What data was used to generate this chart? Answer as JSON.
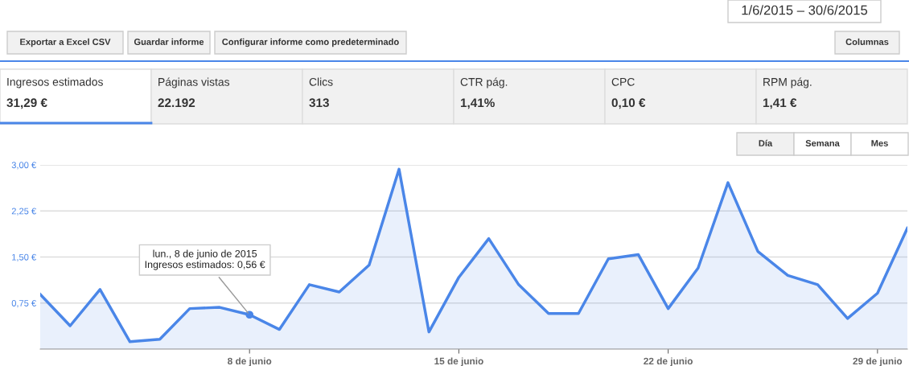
{
  "chart_data": [
    {
      "type": "other",
      "annotations": [
        "1/6/2015 – 30/6/2015",
        "Exportar a Excel CSV",
        "Guardar informe",
        "Configurar informe como predeterminado",
        "Columnas",
        "Ingresos estimados",
        "31,29 €",
        "Páginas vistas",
        "22.192",
        "Clics",
        "313",
        "CTR pág.",
        "1,41%",
        "CPC",
        "0,10 €",
        "RPM pág.",
        "1,41 €",
        "Día",
        "Semana",
        "Mes"
      ]
    },
    {
      "type": "area",
      "x": [
        "2015-06-01",
        "2015-06-02",
        "2015-06-03",
        "2015-06-04",
        "2015-06-05",
        "2015-06-06",
        "2015-06-07",
        "2015-06-08",
        "2015-06-09",
        "2015-06-10",
        "2015-06-11",
        "2015-06-12",
        "2015-06-13",
        "2015-06-14",
        "2015-06-15",
        "2015-06-16",
        "2015-06-17",
        "2015-06-18",
        "2015-06-19",
        "2015-06-20",
        "2015-06-21",
        "2015-06-22",
        "2015-06-23",
        "2015-06-24",
        "2015-06-25",
        "2015-06-26",
        "2015-06-27",
        "2015-06-28",
        "2015-06-29",
        "2015-06-30"
      ],
      "series": [
        {
          "color": "#4a86e8",
          "values": [
            0.89,
            0.38,
            0.97,
            0.12,
            0.16,
            0.66,
            0.68,
            0.56,
            0.32,
            1.05,
            0.93,
            1.37,
            2.93,
            0.28,
            1.17,
            1.8,
            1.05,
            0.58,
            0.58,
            1.47,
            1.54,
            0.66,
            1.32,
            2.71,
            1.59,
            1.2,
            1.05,
            0.5,
            0.91,
            1.97
          ]
        }
      ],
      "xlim": [
        "2015-06-01",
        "2015-06-30"
      ],
      "xticks": [
        {
          "value": "2015-06-08",
          "label": "8 de junio"
        },
        {
          "value": "2015-06-15",
          "label": "15 de junio"
        },
        {
          "value": "2015-06-22",
          "label": "22 de junio"
        },
        {
          "value": "2015-06-29",
          "label": "29 de junio"
        }
      ],
      "ylim": [
        0,
        3.0
      ],
      "yticks": [
        {
          "value": 0,
          "label": null
        },
        {
          "value": 0.75,
          "label": "0,75 €"
        },
        {
          "value": 1.5,
          "label": "1,50 €"
        },
        {
          "value": 2.25,
          "label": "2,25 €"
        },
        {
          "value": 3.0,
          "label": "3,00 €"
        }
      ],
      "grid": "y",
      "legend": false,
      "marker": "none",
      "line_style": "solid",
      "annotations": [
        {
          "text": "lun., 8 de junio de 2015\nIngresos estimados: 0,56 €",
          "x": "2015-06-08",
          "y": 0.56
        }
      ]
    }
  ]
}
